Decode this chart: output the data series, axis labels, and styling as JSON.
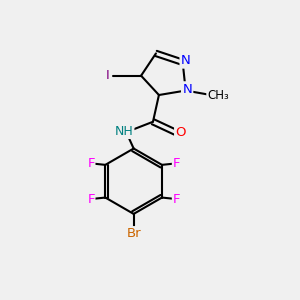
{
  "background_color": "#f0f0f0",
  "bond_color": "#000000",
  "atom_colors": {
    "N": "#0000ff",
    "O": "#ff0000",
    "F": "#ff00ff",
    "Br": "#cc6600",
    "I": "#800080",
    "H": "#008080",
    "C": "#000000"
  },
  "font_size": 9,
  "line_width": 1.5
}
